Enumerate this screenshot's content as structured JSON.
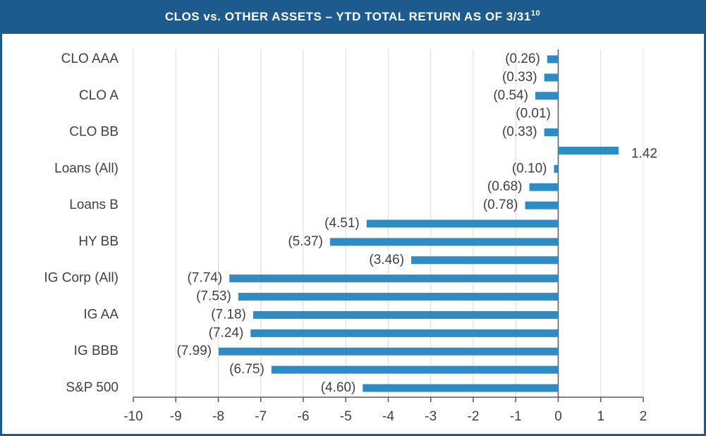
{
  "chart_data": {
    "type": "bar",
    "orientation": "horizontal",
    "title": "CLOS vs. OTHER ASSETS – YTD TOTAL RETURN AS OF 3/31",
    "title_superscript": "10",
    "categories": [
      "CLO AAA",
      null,
      "CLO A",
      null,
      "CLO BB",
      null,
      "Loans (All)",
      null,
      "Loans B",
      null,
      "HY BB",
      null,
      "IG Corp (All)",
      null,
      "IG AA",
      null,
      "IG BBB",
      null,
      "S&P 500"
    ],
    "values": [
      -0.26,
      -0.33,
      -0.54,
      -0.01,
      -0.33,
      1.42,
      -0.1,
      -0.68,
      -0.78,
      -4.51,
      -5.37,
      -3.46,
      -7.74,
      -7.53,
      -7.18,
      -7.24,
      -7.99,
      -6.75,
      -4.6
    ],
    "value_labels": [
      "(0.26)",
      "(0.33)",
      "(0.54)",
      "(0.01)",
      "(0.33)",
      "1.42",
      "(0.10)",
      "(0.68)",
      "(0.78)",
      "(4.51)",
      "(5.37)",
      "(3.46)",
      "(7.74)",
      "(7.53)",
      "(7.18)",
      "(7.24)",
      "(7.99)",
      "(6.75)",
      "(4.60)"
    ],
    "color": "#2e8bc4",
    "xlim": [
      -10,
      2
    ],
    "xticks": [
      -10,
      -9,
      -8,
      -7,
      -6,
      -5,
      -4,
      -3,
      -2,
      -1,
      0,
      1,
      2
    ],
    "grid": true
  }
}
